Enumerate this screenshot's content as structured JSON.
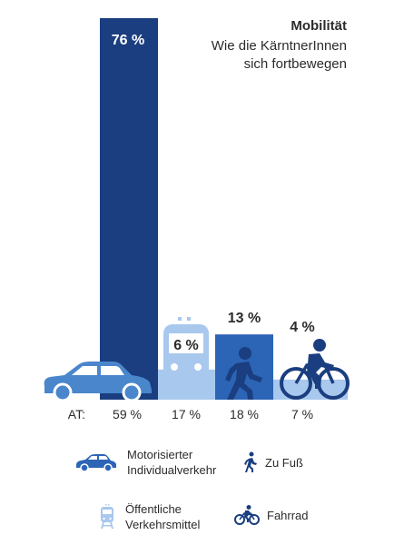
{
  "header": {
    "title": "Mobilität",
    "subtitle": "Wie die KärntnerInnen sich fortbewegen"
  },
  "colors": {
    "dark_blue": "#1a3e7f",
    "mid_blue": "#2c64b6",
    "light_blue": "#a8c8ee",
    "car_blue": "#4a86cc",
    "text": "#2b2b2b"
  },
  "chart_data": {
    "type": "bar",
    "title": "Mobilität",
    "subtitle": "Wie die KärntnerInnen sich fortbewegen",
    "categories": [
      "Motorisierter Individualverkehr",
      "Öffentliche Verkehrsmittel",
      "Zu Fuß",
      "Fahrrad"
    ],
    "series": [
      {
        "values": [
          76,
          6,
          13,
          4
        ],
        "value_labels": [
          "76 %",
          "6 %",
          "13 %",
          "4 %"
        ]
      },
      {
        "name": "AT",
        "values": [
          59,
          17,
          18,
          7
        ],
        "value_labels": [
          "59 %",
          "17 %",
          "18 %",
          "7 %"
        ]
      }
    ],
    "at_prefix": "AT:",
    "ylim": [
      0,
      76
    ],
    "grid": false,
    "legend_position": "bottom"
  },
  "legend": [
    {
      "icon": "car-icon",
      "label_lines": [
        "Motorisierter",
        "Individualverkehr"
      ]
    },
    {
      "icon": "walking-person-icon",
      "label_lines": [
        "Zu Fuß"
      ]
    },
    {
      "icon": "train-icon",
      "label_lines": [
        "Öffentliche",
        "Verkehrsmittel"
      ]
    },
    {
      "icon": "bicycle-icon",
      "label_lines": [
        "Fahrrad"
      ]
    }
  ]
}
